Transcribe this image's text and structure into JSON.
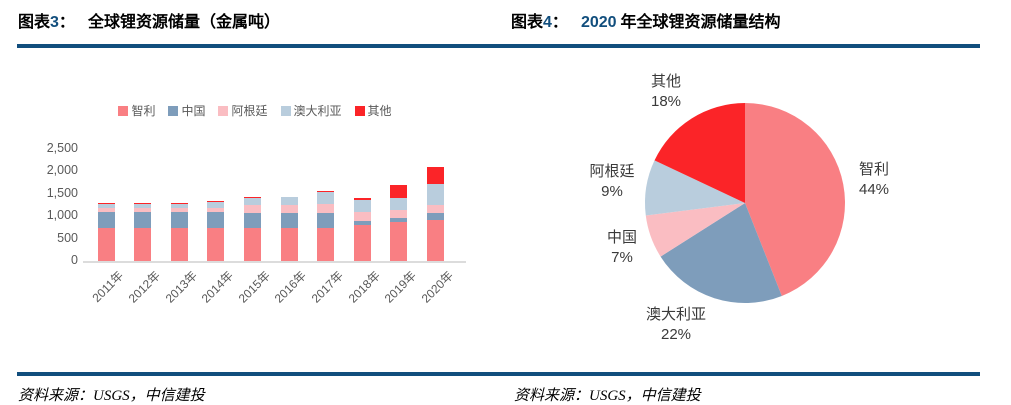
{
  "page": {
    "background": "#FFFFFF",
    "accent_navy": "#114E7D"
  },
  "header": {
    "left": {
      "prefix": "图表",
      "num": "3",
      "colon": "：",
      "title": "全球锂资源储量（金属吨）"
    },
    "right": {
      "prefix": "图表",
      "num": "4",
      "colon": "：",
      "year": "2020",
      "title": "年全球锂资源储量结构"
    }
  },
  "footer": {
    "left_source": "资料来源：USGS，中信建投",
    "right_source": "资料来源：USGS，中信建投"
  },
  "chart_data": [
    {
      "type": "bar",
      "stacked": true,
      "title": "全球锂资源储量（金属吨）",
      "categories": [
        "2011年",
        "2012年",
        "2013年",
        "2014年",
        "2015年",
        "2016年",
        "2017年",
        "2018年",
        "2019年",
        "2020年"
      ],
      "series": [
        {
          "name": "智利",
          "color": "#F97F83",
          "values": [
            750,
            750,
            750,
            750,
            750,
            750,
            750,
            800,
            860,
            920
          ]
        },
        {
          "name": "中国",
          "color": "#7E9DBB",
          "values": [
            350,
            350,
            350,
            350,
            320,
            320,
            320,
            100,
            100,
            150
          ]
        },
        {
          "name": "阿根廷",
          "color": "#FABDC2",
          "values": [
            85,
            85,
            85,
            85,
            200,
            200,
            200,
            200,
            170,
            190
          ]
        },
        {
          "name": "澳大利亚",
          "color": "#B9CDDD",
          "values": [
            100,
            100,
            100,
            150,
            150,
            160,
            270,
            270,
            280,
            470
          ]
        },
        {
          "name": "其他",
          "color": "#FB2428",
          "values": [
            15,
            15,
            15,
            15,
            10,
            10,
            15,
            30,
            290,
            370
          ]
        }
      ],
      "ylim": [
        0,
        2500
      ],
      "yticks": [
        "0",
        "500",
        "1,000",
        "1,500",
        "2,000",
        "2,500"
      ],
      "grid": false,
      "legend_position": "top",
      "axis_text_color": "#595959"
    },
    {
      "type": "pie",
      "title": "2020 年全球锂资源储量结构",
      "start_angle_deg": 0,
      "direction": "clockwise",
      "slices": [
        {
          "label": "智利",
          "pct": 44,
          "pct_label": "44%",
          "color": "#F97F83"
        },
        {
          "label": "澳大利亚",
          "pct": 22,
          "pct_label": "22%",
          "color": "#7E9DBB"
        },
        {
          "label": "中国",
          "pct": 7,
          "pct_label": "7%",
          "color": "#FABDC2"
        },
        {
          "label": "阿根廷",
          "pct": 9,
          "pct_label": "9%",
          "color": "#B9CDDD"
        },
        {
          "label": "其他",
          "pct": 18,
          "pct_label": "18%",
          "color": "#FB2428"
        }
      ]
    }
  ]
}
